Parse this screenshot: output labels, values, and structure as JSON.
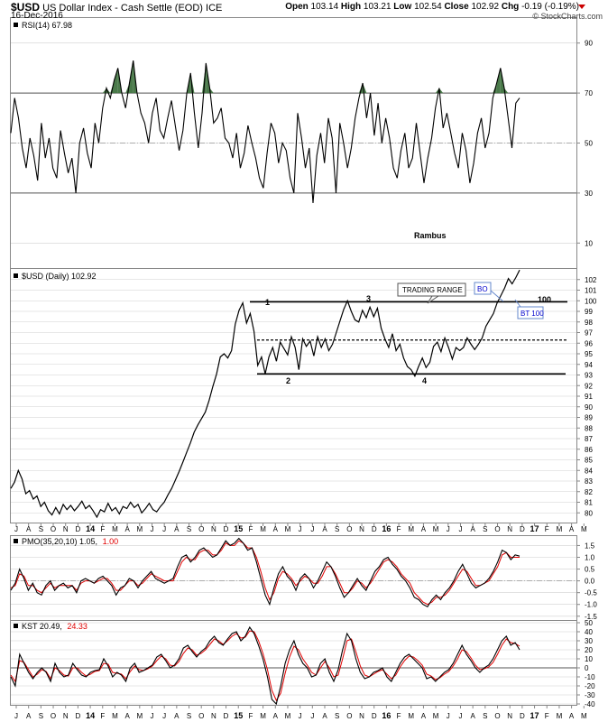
{
  "header": {
    "symbol": "$USD",
    "name": "US Dollar Index - Cash Settle (EOD) ICE",
    "date": "16-Dec-2016",
    "open_label": "Open",
    "open": "103.14",
    "high_label": "High",
    "high": "103.21",
    "low_label": "Low",
    "low": "102.54",
    "close_label": "Close",
    "close": "102.92",
    "chg_label": "Chg",
    "chg": "-0.19 (-0.19%)",
    "source": "© StockCharts.com"
  },
  "colors": {
    "price": "#000000",
    "signal": "#e00000",
    "grid": "#d0d0d0",
    "rsi_fill": "#4a7a4a",
    "note_text": "#0000cc"
  },
  "chart_data": [
    {
      "type": "line",
      "panel": "RSI",
      "legend": "RSI(14) 67.98",
      "ylim": [
        0,
        100
      ],
      "yticks": [
        10,
        30,
        50,
        70,
        90
      ],
      "levels": [
        30,
        50,
        70
      ],
      "overbought_fill": true,
      "annotations": [
        "Rambus"
      ],
      "values": [
        54,
        68,
        60,
        48,
        40,
        52,
        45,
        35,
        58,
        44,
        52,
        40,
        36,
        55,
        46,
        38,
        44,
        30,
        50,
        56,
        46,
        40,
        58,
        50,
        64,
        72,
        68,
        75,
        80,
        70,
        64,
        74,
        83,
        70,
        62,
        58,
        50,
        62,
        68,
        55,
        52,
        60,
        67,
        57,
        47,
        55,
        70,
        78,
        62,
        48,
        62,
        82,
        72,
        58,
        60,
        64,
        52,
        50,
        44,
        54,
        40,
        46,
        57,
        50,
        44,
        36,
        32,
        46,
        58,
        54,
        42,
        50,
        47,
        36,
        30,
        62,
        52,
        40,
        48,
        26,
        45,
        54,
        42,
        60,
        52,
        30,
        58,
        50,
        40,
        48,
        60,
        68,
        74,
        60,
        70,
        53,
        66,
        50,
        60,
        52,
        40,
        36,
        47,
        54,
        40,
        44,
        58,
        46,
        34,
        44,
        52,
        64,
        72,
        56,
        62,
        54,
        46,
        40,
        54,
        47,
        34,
        42,
        54,
        60,
        48,
        54,
        68,
        74,
        80,
        72,
        60,
        48,
        66,
        68
      ]
    },
    {
      "type": "line",
      "panel": "price",
      "legend": "$USD (Daily) 102.92",
      "ylim": [
        79,
        103
      ],
      "yticks": [
        79,
        80,
        81,
        82,
        83,
        84,
        85,
        86,
        87,
        88,
        89,
        90,
        91,
        92,
        93,
        94,
        95,
        96,
        97,
        98,
        99,
        100,
        101,
        102,
        103
      ],
      "x_labels": [
        "J",
        "A",
        "S",
        "O",
        "N",
        "D",
        "14",
        "F",
        "M",
        "A",
        "M",
        "J",
        "J",
        "A",
        "S",
        "O",
        "N",
        "D",
        "15",
        "F",
        "M",
        "A",
        "M",
        "J",
        "J",
        "A",
        "S",
        "O",
        "N",
        "D",
        "16",
        "F",
        "M",
        "A",
        "M",
        "J",
        "J",
        "A",
        "S",
        "O",
        "N",
        "D",
        "17",
        "F",
        "M",
        "A",
        "M"
      ],
      "values": [
        82.3,
        82.9,
        84.0,
        83.2,
        81.8,
        82.1,
        81.3,
        81.6,
        80.6,
        81.0,
        80.2,
        79.8,
        80.5,
        79.9,
        80.8,
        80.3,
        80.7,
        80.2,
        80.6,
        81.1,
        80.4,
        80.7,
        80.2,
        79.6,
        80.3,
        80.1,
        80.9,
        80.2,
        80.5,
        79.9,
        80.6,
        80.4,
        81.0,
        80.5,
        80.8,
        80.0,
        80.4,
        80.9,
        80.3,
        80.1,
        80.6,
        81.0,
        81.7,
        82.3,
        83.1,
        83.9,
        84.8,
        85.7,
        86.6,
        87.6,
        88.3,
        88.9,
        89.5,
        90.6,
        91.9,
        93.1,
        94.7,
        95.0,
        94.6,
        95.3,
        97.8,
        99.1,
        99.8,
        97.9,
        98.8,
        97.1,
        93.9,
        94.7,
        93.1,
        94.7,
        95.6,
        94.3,
        96.1,
        95.5,
        94.9,
        96.6,
        95.6,
        93.5,
        96.4,
        95.7,
        96.2,
        94.8,
        96.6,
        95.6,
        96.4,
        95.3,
        95.9,
        97.0,
        98.1,
        99.2,
        100.0,
        99.0,
        98.2,
        98.0,
        99.1,
        98.4,
        99.4,
        98.5,
        99.3,
        97.4,
        96.4,
        95.6,
        96.9,
        95.3,
        95.9,
        94.6,
        93.8,
        93.5,
        92.9,
        93.8,
        94.6,
        93.7,
        94.2,
        95.7,
        96.1,
        95.2,
        96.5,
        95.6,
        94.5,
        95.6,
        95.3,
        95.6,
        96.5,
        95.9,
        95.4,
        95.9,
        96.5,
        97.6,
        98.2,
        98.8,
        99.8,
        100.5,
        101.2,
        102.1,
        101.6,
        102.2,
        102.9
      ],
      "lines": [
        {
          "name": "resistance",
          "y": 99.9,
          "style": "solid"
        },
        {
          "name": "midline",
          "y": 96.3,
          "style": "dashed"
        },
        {
          "name": "support",
          "y": 93.1,
          "style": "solid"
        }
      ],
      "annotations": [
        "1",
        "2",
        "3",
        "4",
        "TRADING RANGE",
        "BO",
        "BT 100",
        "100"
      ]
    },
    {
      "type": "line",
      "panel": "PMO",
      "legend_main": "PMO(35,20,10) 1.05,",
      "legend_signal": "1.00",
      "ylim": [
        -1.7,
        1.9
      ],
      "yticks": [
        "1.5",
        "1.0",
        "0.5",
        "0.0",
        "-0.5",
        "-1.0",
        "-1.5"
      ],
      "ytick_values": [
        1.5,
        1.0,
        0.5,
        0.0,
        -0.5,
        -1.0,
        -1.5
      ],
      "zero_line": 0.0,
      "series": [
        {
          "role": "main",
          "values": [
            -0.4,
            -0.1,
            0.5,
            0.1,
            -0.4,
            -0.1,
            -0.5,
            -0.6,
            -0.2,
            0.0,
            -0.4,
            -0.2,
            -0.1,
            -0.3,
            -0.2,
            -0.5,
            0.0,
            0.1,
            0.0,
            -0.1,
            0.1,
            0.2,
            0.0,
            -0.2,
            -0.6,
            -0.3,
            -0.2,
            0.1,
            0.0,
            -0.3,
            0.0,
            0.2,
            0.4,
            0.1,
            0.0,
            -0.1,
            0.0,
            0.1,
            0.6,
            1.0,
            1.1,
            0.8,
            1.0,
            1.3,
            1.4,
            1.2,
            1.0,
            1.1,
            1.4,
            1.7,
            1.5,
            1.6,
            1.8,
            1.6,
            1.3,
            1.4,
            0.8,
            0.1,
            -0.6,
            -1.0,
            -0.3,
            0.3,
            0.6,
            0.2,
            0.0,
            -0.4,
            0.1,
            0.3,
            0.1,
            -0.3,
            0.0,
            0.4,
            0.8,
            0.6,
            0.2,
            -0.3,
            -0.7,
            -0.5,
            -0.2,
            0.1,
            -0.2,
            -0.4,
            0.0,
            0.4,
            0.6,
            0.9,
            1.0,
            0.7,
            0.5,
            0.2,
            0.0,
            -0.3,
            -0.7,
            -0.8,
            -1.0,
            -1.1,
            -0.8,
            -0.6,
            -0.8,
            -0.5,
            -0.3,
            0.0,
            0.4,
            0.7,
            0.3,
            -0.1,
            -0.3,
            -0.2,
            -0.1,
            0.1,
            0.4,
            0.8,
            1.3,
            1.2,
            0.9,
            1.1,
            1.05
          ]
        },
        {
          "role": "signal",
          "values": [
            -0.3,
            -0.2,
            0.3,
            0.2,
            -0.2,
            -0.2,
            -0.4,
            -0.5,
            -0.3,
            -0.1,
            -0.3,
            -0.2,
            -0.2,
            -0.2,
            -0.2,
            -0.4,
            -0.1,
            0.0,
            0.0,
            -0.1,
            0.0,
            0.1,
            0.1,
            -0.1,
            -0.4,
            -0.4,
            -0.2,
            0.0,
            0.0,
            -0.2,
            -0.1,
            0.1,
            0.3,
            0.2,
            0.1,
            0.0,
            0.0,
            0.0,
            0.4,
            0.8,
            1.0,
            0.9,
            0.9,
            1.2,
            1.3,
            1.3,
            1.1,
            1.1,
            1.3,
            1.6,
            1.5,
            1.5,
            1.7,
            1.6,
            1.4,
            1.4,
            1.0,
            0.4,
            -0.3,
            -0.8,
            -0.5,
            0.1,
            0.4,
            0.3,
            0.1,
            -0.2,
            0.0,
            0.2,
            0.1,
            -0.1,
            -0.1,
            0.2,
            0.6,
            0.6,
            0.3,
            -0.1,
            -0.5,
            -0.5,
            -0.3,
            0.0,
            -0.1,
            -0.3,
            -0.1,
            0.2,
            0.5,
            0.8,
            0.9,
            0.8,
            0.6,
            0.3,
            0.1,
            -0.1,
            -0.5,
            -0.7,
            -0.9,
            -1.0,
            -0.9,
            -0.7,
            -0.7,
            -0.6,
            -0.4,
            -0.1,
            0.2,
            0.5,
            0.4,
            0.1,
            -0.2,
            -0.2,
            -0.1,
            0.0,
            0.3,
            0.6,
            1.1,
            1.2,
            1.0,
            1.0,
            1.0
          ]
        }
      ]
    },
    {
      "type": "line",
      "panel": "KST",
      "legend_main": "KST 20.49,",
      "legend_signal": "24.33",
      "ylim": [
        -42,
        52
      ],
      "yticks": [
        50,
        40,
        30,
        20,
        10,
        0,
        -10,
        -20,
        -30,
        -40
      ],
      "zero_line": 0,
      "series": [
        {
          "role": "main",
          "values": [
            -10,
            -20,
            15,
            5,
            -5,
            -12,
            -5,
            0,
            -5,
            -15,
            5,
            -5,
            -10,
            -8,
            5,
            -2,
            -8,
            -10,
            -5,
            -3,
            -2,
            10,
            2,
            -10,
            -5,
            -8,
            -15,
            0,
            5,
            -5,
            -3,
            0,
            3,
            12,
            15,
            8,
            0,
            3,
            10,
            22,
            25,
            18,
            12,
            18,
            22,
            30,
            35,
            28,
            25,
            32,
            38,
            40,
            30,
            35,
            45,
            38,
            25,
            10,
            -10,
            -35,
            -40,
            -20,
            5,
            20,
            30,
            15,
            5,
            0,
            -10,
            -8,
            5,
            10,
            -5,
            -15,
            -2,
            20,
            38,
            30,
            10,
            -5,
            -12,
            -10,
            -5,
            -3,
            0,
            -10,
            -15,
            -5,
            5,
            12,
            15,
            10,
            5,
            0,
            -12,
            -10,
            -15,
            -10,
            -5,
            -2,
            5,
            15,
            25,
            15,
            8,
            0,
            -5,
            0,
            3,
            10,
            20,
            30,
            35,
            25,
            28,
            20
          ]
        },
        {
          "role": "signal",
          "values": [
            -8,
            -15,
            8,
            6,
            -2,
            -10,
            -7,
            -2,
            -4,
            -12,
            0,
            -3,
            -8,
            -9,
            0,
            0,
            -5,
            -9,
            -7,
            -4,
            -3,
            5,
            4,
            -5,
            -6,
            -7,
            -12,
            -4,
            2,
            -2,
            -3,
            -1,
            2,
            8,
            13,
            10,
            3,
            2,
            7,
            16,
            22,
            20,
            14,
            16,
            20,
            26,
            32,
            30,
            26,
            30,
            35,
            38,
            33,
            34,
            41,
            40,
            30,
            16,
            -2,
            -25,
            -36,
            -28,
            -6,
            12,
            24,
            20,
            10,
            3,
            -5,
            -8,
            0,
            7,
            0,
            -10,
            -8,
            10,
            30,
            32,
            18,
            2,
            -8,
            -10,
            -7,
            -4,
            -2,
            -7,
            -12,
            -8,
            1,
            8,
            13,
            12,
            8,
            3,
            -7,
            -9,
            -13,
            -11,
            -7,
            -4,
            2,
            10,
            20,
            18,
            11,
            3,
            -2,
            -1,
            1,
            6,
            15,
            25,
            32,
            28,
            27,
            24
          ]
        }
      ]
    }
  ]
}
